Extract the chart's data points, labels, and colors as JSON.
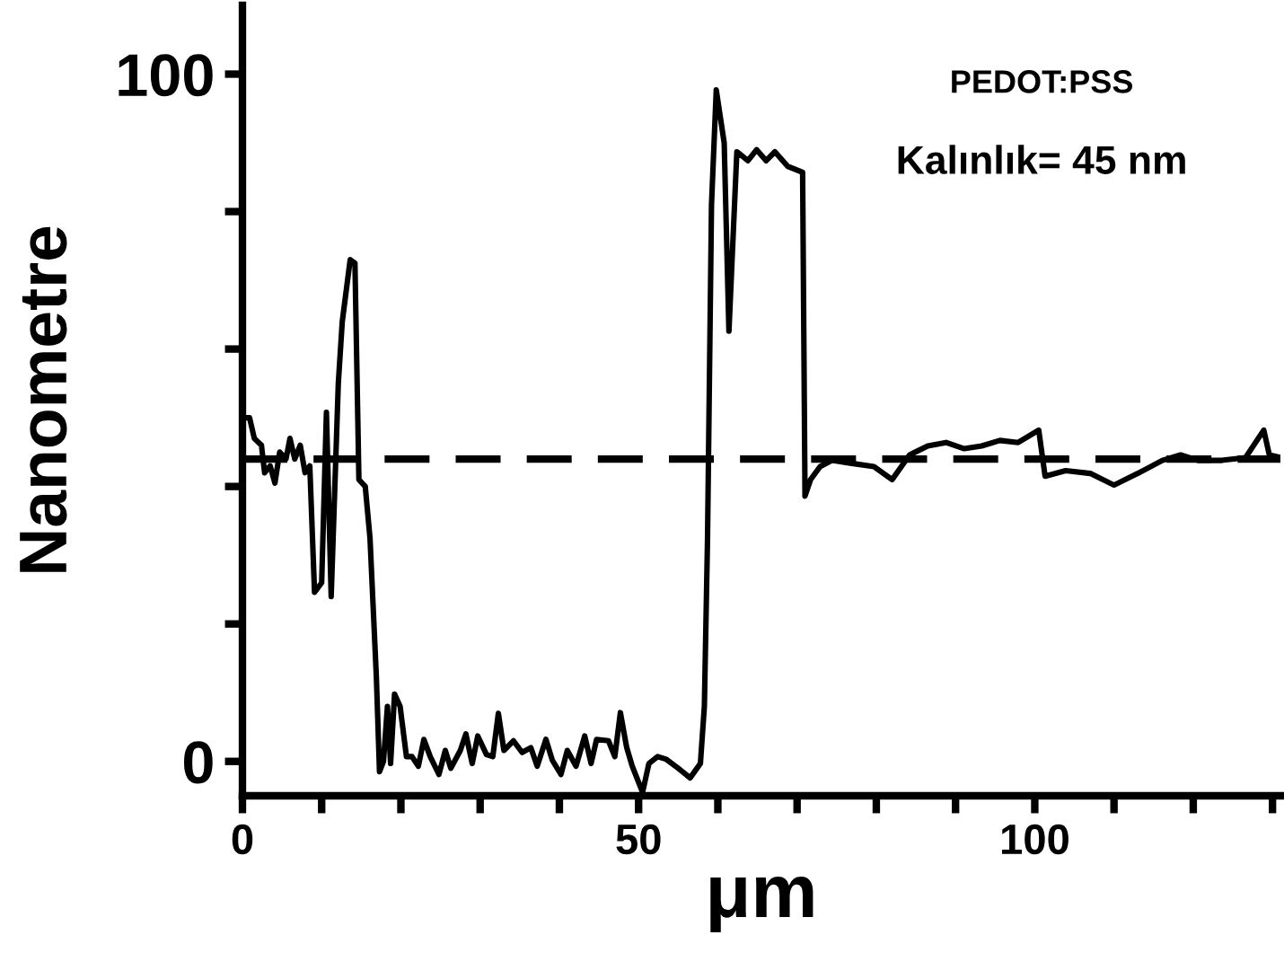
{
  "chart_data": {
    "type": "line",
    "xlabel": "μm",
    "ylabel": "Nanometre",
    "annotations": [
      "PEDOT:PSS",
      "Kalınlık= 45 nm"
    ],
    "xlim": [
      0,
      131
    ],
    "ylim": [
      -5,
      110
    ],
    "xticks": [
      0,
      {
        "value": 10,
        "label": null
      },
      {
        "value": 20,
        "label": null
      },
      {
        "value": 30,
        "label": null
      },
      {
        "value": 40,
        "label": null
      },
      50,
      {
        "value": 60,
        "label": null
      },
      {
        "value": 70,
        "label": null
      },
      {
        "value": 80,
        "label": null
      },
      {
        "value": 90,
        "label": null
      },
      100,
      {
        "value": 110,
        "label": null
      },
      {
        "value": 120,
        "label": null
      },
      {
        "value": 130,
        "label": null
      }
    ],
    "yticks": [
      0,
      {
        "value": 20,
        "label": null
      },
      {
        "value": 40,
        "label": null
      },
      {
        "value": 60,
        "label": null
      },
      {
        "value": 80,
        "label": null
      },
      100
    ],
    "ref_lines": [
      {
        "axis": "y",
        "value": 44,
        "line_style": "dashed",
        "color": "#000000"
      }
    ],
    "grid": false,
    "legend": false,
    "marker": "none",
    "line_style": "solid",
    "series": [
      {
        "color": "#000000",
        "x": [
          0.3,
          0.9,
          1.5,
          2.4,
          2.8,
          3.5,
          4.1,
          4.7,
          5.5,
          6.0,
          6.6,
          7.3,
          7.9,
          8.5,
          9.1,
          10.0,
          10.6,
          11.2,
          12.1,
          12.6,
          13.6,
          14.2,
          14.7,
          15.5,
          16.1,
          16.9,
          17.3,
          17.8,
          18.3,
          18.7,
          19.2,
          19.9,
          20.7,
          21.4,
          22.2,
          22.9,
          23.7,
          24.8,
          25.6,
          26.3,
          27.5,
          28.2,
          29.0,
          29.7,
          30.8,
          31.6,
          32.3,
          33.0,
          34.2,
          35.3,
          36.4,
          37.2,
          38.3,
          39.1,
          40.2,
          41.0,
          42.1,
          43.2,
          44.0,
          44.7,
          46.2,
          47.0,
          47.7,
          48.5,
          49.2,
          50.5,
          51.3,
          52.4,
          53.5,
          55.0,
          56.5,
          57.8,
          58.3,
          58.7,
          59.2,
          59.8,
          60.8,
          61.4,
          62.4,
          63.8,
          64.9,
          66.1,
          67.2,
          68.8,
          70.7,
          71.0,
          71.7,
          72.9,
          74.4,
          76.7,
          79.7,
          82.0,
          84.2,
          86.5,
          88.8,
          91.1,
          93.3,
          95.6,
          97.9,
          100.5,
          101.3,
          103.9,
          107.0,
          110.0,
          113.0,
          116.1,
          118.4,
          120.6,
          123.6,
          126.6,
          128.9,
          129.6,
          131.0
        ],
        "values": [
          50,
          50,
          47,
          46,
          42,
          43,
          40.5,
          45,
          44,
          47,
          44,
          46,
          42,
          43,
          24.6,
          26,
          50.8,
          24,
          55,
          64,
          73,
          72.5,
          41,
          40,
          32.5,
          12.4,
          -1.5,
          0,
          8,
          -0.3,
          9.8,
          8,
          0.7,
          0.7,
          -0.7,
          3.2,
          0.7,
          -1.9,
          1.6,
          -1,
          1.6,
          4,
          -0.3,
          3.7,
          1,
          0.7,
          7,
          1.6,
          3,
          1.3,
          2,
          -0.7,
          3.2,
          0.2,
          -1.9,
          1.6,
          -0.7,
          3.7,
          -0.3,
          3.2,
          3,
          0.7,
          7.1,
          2,
          -0.7,
          -4.5,
          -0.3,
          0.7,
          0.3,
          -1,
          -2.4,
          -0.3,
          8,
          32.5,
          81,
          97.7,
          90,
          62.6,
          88.7,
          87.4,
          89,
          87.4,
          88.7,
          86.6,
          85.7,
          38.6,
          41,
          42.9,
          43.8,
          43.4,
          42.9,
          41,
          44.6,
          45.9,
          46.4,
          45.5,
          45.9,
          46.7,
          46.4,
          48.2,
          41.5,
          42.3,
          41.9,
          40.2,
          41.9,
          43.8,
          44.6,
          43.8,
          43.8,
          44.2,
          48.2,
          44.6,
          44.2
        ]
      }
    ]
  }
}
